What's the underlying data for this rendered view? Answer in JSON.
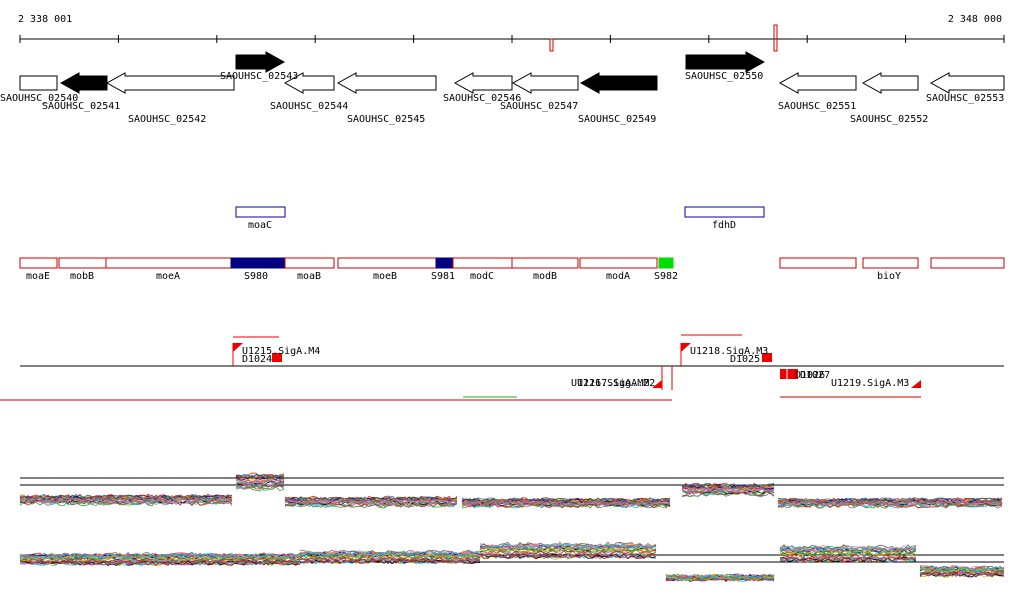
{
  "coords": {
    "start": "2 338 001",
    "end": "2 348 000"
  },
  "genes": [
    {
      "label": "SAOUHSC_02540"
    },
    {
      "label": "SAOUHSC_02541"
    },
    {
      "label": "SAOUHSC_02542"
    },
    {
      "label": "SAOUHSC_02543"
    },
    {
      "label": "SAOUHSC_02544"
    },
    {
      "label": "SAOUHSC_02545"
    },
    {
      "label": "SAOUHSC_02546"
    },
    {
      "label": "SAOUHSC_02547"
    },
    {
      "label": "SAOUHSC_02549"
    },
    {
      "label": "SAOUHSC_02550"
    },
    {
      "label": "SAOUHSC_02551"
    },
    {
      "label": "SAOUHSC_02552"
    },
    {
      "label": "SAOUHSC_02553"
    }
  ],
  "operon_labels": [
    "moaC",
    "fdhD"
  ],
  "features": [
    "moaE",
    "mobB",
    "moeA",
    "S980",
    "moaB",
    "moeB",
    "S981",
    "modC",
    "modB",
    "modA",
    "S982",
    "bioY"
  ],
  "tss": [
    "U1215.SigA.M4",
    "D1024",
    "U1218.SigA.M3",
    "D1025",
    "D1026",
    "D1027",
    "U1219.SigA.M3",
    "U1216.SigA.M2",
    "U1217.SigA.M2"
  ],
  "colors": {
    "gene_black": "#000000",
    "feature_red": "#cc0000",
    "operon_blue": "#0000aa",
    "sRNA_navy": "#000080",
    "sRNA_green": "#00dd00",
    "tss_red": "#ee0000",
    "tile_green": "#22aa22"
  }
}
